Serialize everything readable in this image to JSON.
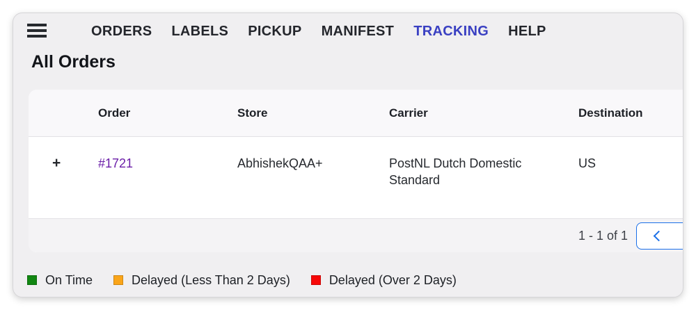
{
  "nav": {
    "items": [
      {
        "label": "ORDERS",
        "active": false
      },
      {
        "label": "LABELS",
        "active": false
      },
      {
        "label": "PICKUP",
        "active": false
      },
      {
        "label": "MANIFEST",
        "active": false
      },
      {
        "label": "TRACKING",
        "active": true
      },
      {
        "label": "HELP",
        "active": false
      }
    ]
  },
  "page": {
    "title": "All Orders"
  },
  "table": {
    "columns": {
      "order": "Order",
      "store": "Store",
      "carrier": "Carrier",
      "destination": "Destination"
    },
    "rows": [
      {
        "expander": "+",
        "order": "#1721",
        "store": "AbhishekQAA+",
        "carrier": "PostNL Dutch Domestic Standard",
        "destination": "US"
      }
    ],
    "pagination": {
      "range_text": "1 - 1 of 1"
    }
  },
  "legend": {
    "items": [
      {
        "label": "On Time",
        "color": "#128712"
      },
      {
        "label": "Delayed (Less Than 2 Days)",
        "color": "#faa51a"
      },
      {
        "label": "Delayed (Over 2 Days)",
        "color": "#f70808"
      }
    ]
  },
  "colors": {
    "nav_active": "#3a40c2",
    "order_link": "#6b1fa8",
    "pagination_accent": "#1a6fe8"
  }
}
